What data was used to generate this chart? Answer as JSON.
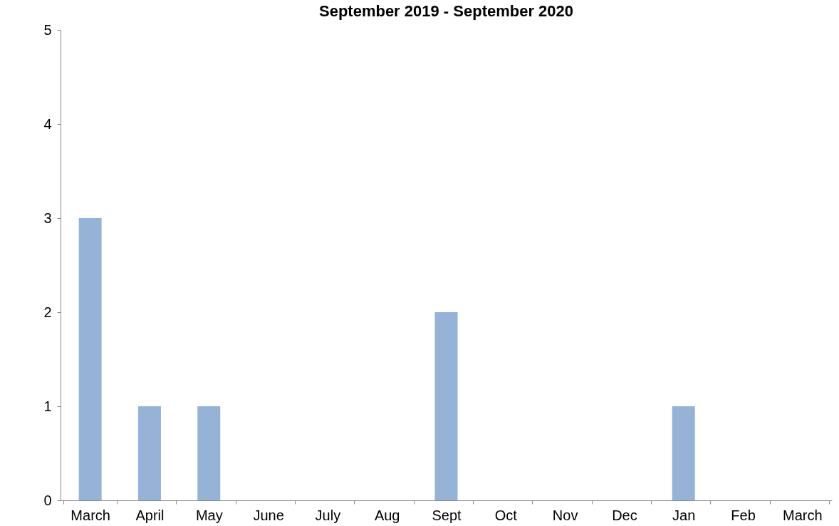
{
  "chart_data": {
    "type": "bar",
    "title": "September 2019 - September 2020",
    "categories": [
      "March",
      "April",
      "May",
      "June",
      "July",
      "Aug",
      "Sept",
      "Oct",
      "Nov",
      "Dec",
      "Jan",
      "Feb",
      "March"
    ],
    "values": [
      3,
      1,
      1,
      0,
      0,
      0,
      2,
      0,
      0,
      0,
      1,
      0,
      0
    ],
    "color": "#95b3d7",
    "ylim": [
      0,
      5
    ],
    "yticks": [
      0,
      1,
      2,
      3,
      4,
      5
    ],
    "grid": false
  }
}
